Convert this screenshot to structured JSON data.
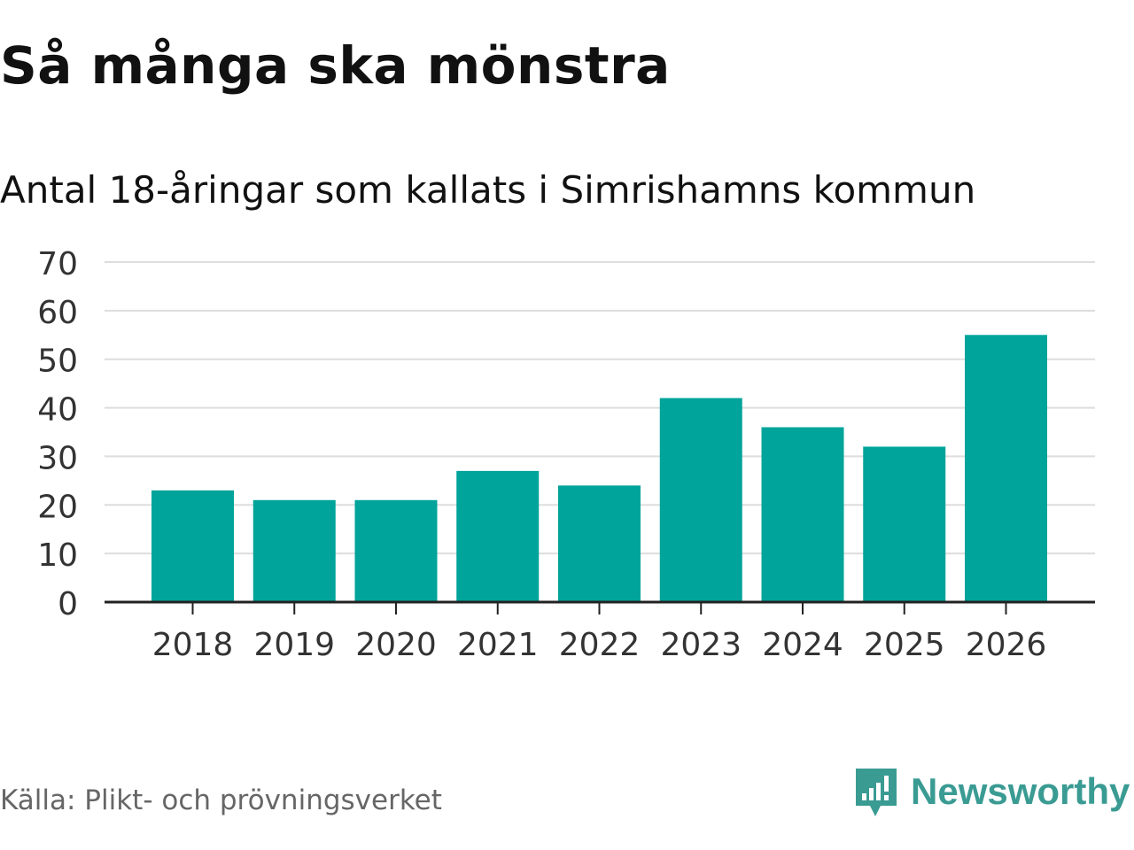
{
  "title": "Så många ska mönstra",
  "source": "Källa: Plikt- och prövningsverket",
  "brand": {
    "name": "Newsworthy",
    "logo_icon": "newsworthy-logo-icon",
    "color": "#3a9b93"
  },
  "chart_data": {
    "type": "bar",
    "title": "Antal 18-åringar som kallats i Simrishamns kommun",
    "xlabel": "",
    "ylabel": "",
    "categories": [
      "2018",
      "2019",
      "2020",
      "2021",
      "2022",
      "2023",
      "2024",
      "2025",
      "2026"
    ],
    "values": [
      23,
      21,
      21,
      27,
      24,
      42,
      36,
      32,
      55
    ],
    "ylim": [
      0,
      70
    ],
    "yticks": [
      0,
      10,
      20,
      30,
      40,
      50,
      60,
      70
    ],
    "grid": true,
    "bar_color": "#00a49a"
  }
}
